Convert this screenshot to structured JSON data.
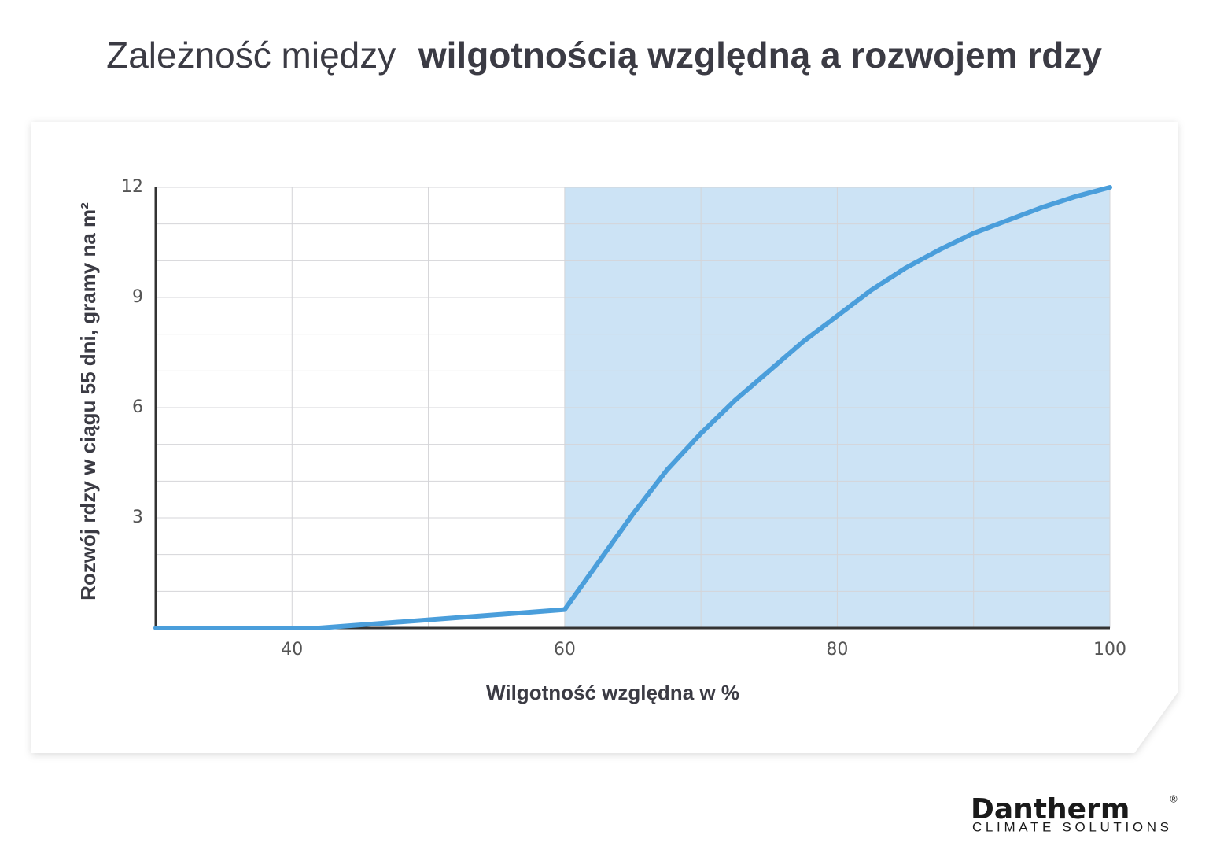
{
  "chart_data": {
    "type": "line",
    "title": {
      "light": "Zależność między",
      "bold": "wilgotnością względną a rozwojem rdzy"
    },
    "x_label": "Wilgotność względna w %",
    "y_label": "Rozwój rdzy w ciągu 55 dni, gramy na m²",
    "xlim": [
      30,
      100
    ],
    "xticks": [
      40,
      60,
      80,
      100
    ],
    "x_minor_ticks": [
      50,
      70,
      90
    ],
    "ylim": [
      0,
      12
    ],
    "yticks": [
      3,
      6,
      9,
      12
    ],
    "y_minor_ticks": [
      1,
      2,
      4,
      5,
      7,
      8,
      10,
      11
    ],
    "grid": true,
    "shaded_region": {
      "x": [
        60,
        100
      ],
      "color": "#cce3f5"
    },
    "series": [
      {
        "color": "#4a9edb",
        "x": [
          30,
          42,
          60,
          62.5,
          65,
          67.5,
          70,
          72.5,
          75,
          77.5,
          80,
          82.5,
          85,
          87.5,
          90,
          92.5,
          95,
          97.5,
          100
        ],
        "values": [
          0,
          0,
          0.5,
          1.8,
          3.1,
          4.3,
          5.3,
          6.2,
          7.0,
          7.8,
          8.5,
          9.2,
          9.8,
          10.3,
          10.75,
          11.1,
          11.45,
          11.75,
          12
        ]
      }
    ]
  },
  "logo": {
    "name": "Dantherm",
    "mark": "®",
    "tagline": "CLIMATE SOLUTIONS"
  }
}
